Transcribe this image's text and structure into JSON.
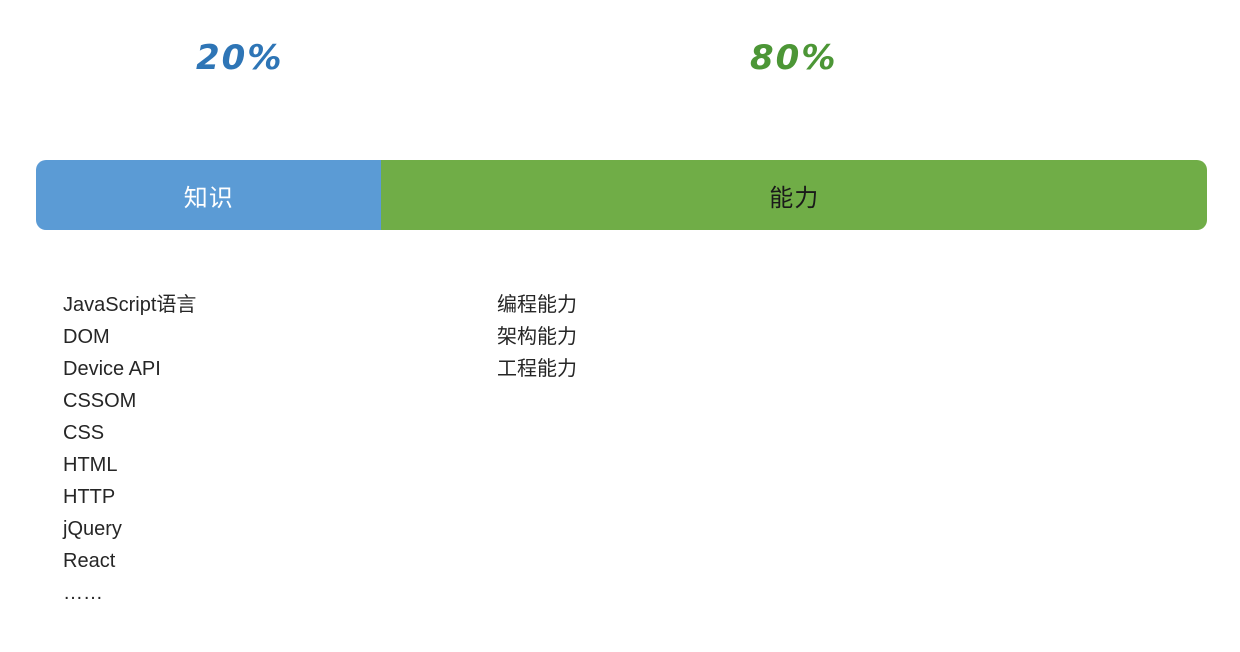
{
  "percent_labels": {
    "knowledge": "20%",
    "ability": "80%"
  },
  "bar": {
    "segments": [
      {
        "id": "knowledge",
        "label": "知识",
        "percent": "20%",
        "color": "#5B9BD5",
        "text_color": "#FFFFFF",
        "visual_width_pct": 29.5
      },
      {
        "id": "ability",
        "label": "能力",
        "percent": "80%",
        "color": "#70AD47",
        "text_color": "#1A1A1A",
        "visual_width_pct": 70.5
      }
    ]
  },
  "lists": {
    "knowledge_items": [
      "JavaScript语言",
      "DOM",
      "Device API",
      "CSSOM",
      "CSS",
      "HTML",
      "HTTP",
      "jQuery",
      "React",
      "……"
    ],
    "ability_items": [
      "编程能力",
      "架构能力",
      "工程能力"
    ]
  },
  "colors": {
    "knowledge_percent_text": "#2E75B6",
    "ability_percent_text": "#4C9636",
    "list_text": "#262626",
    "background": "#FFFFFF"
  }
}
